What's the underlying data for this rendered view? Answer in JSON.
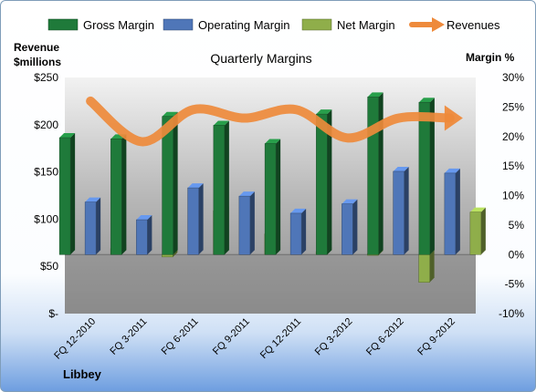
{
  "chart_data": {
    "type": "bar",
    "title": "Quarterly Margins",
    "categories": [
      "FQ 12-2010",
      "FQ 3-2011",
      "FQ 6-2011",
      "FQ 9-2011",
      "FQ 12-2011",
      "FQ 3-2012",
      "FQ 6-2012",
      "FQ 9-2012"
    ],
    "series": [
      {
        "name": "Gross Margin",
        "axis": "right",
        "color": "#1f7a3a",
        "values": [
          19.8,
          19.6,
          23.4,
          21.9,
          18.8,
          23.8,
          26.7,
          25.8
        ]
      },
      {
        "name": "Operating Margin",
        "axis": "right",
        "color": "#4f76b8",
        "values": [
          8.9,
          5.9,
          11.3,
          9.9,
          7.0,
          8.6,
          14.1,
          13.8
        ]
      },
      {
        "name": "Net Margin",
        "axis": "right",
        "color": "#8fae4a",
        "values": [
          1.0,
          -0.4,
          7.4,
          3.5,
          0.5,
          0.1,
          -4.7,
          7.2
        ]
      },
      {
        "name": "Revenues",
        "axis": "left",
        "type": "line",
        "color": "#ee8a3b",
        "values": [
          225,
          182,
          216,
          207,
          216,
          186,
          207,
          207
        ]
      }
    ],
    "ylabel_left": "Revenue $millions",
    "ylabel_right": "Margin %",
    "y_left_ticks": [
      "$250",
      "$200",
      "$150",
      "$100",
      "$50",
      "$-"
    ],
    "y_right_ticks": [
      "30%",
      "25%",
      "20%",
      "15%",
      "10%",
      "5%",
      "0%",
      "-5%",
      "-10%"
    ],
    "ylim_left": [
      0,
      250
    ],
    "ylim_right": [
      -10,
      30
    ],
    "legend_position": "top",
    "grid": false
  },
  "footer": {
    "company": "Libbey"
  }
}
